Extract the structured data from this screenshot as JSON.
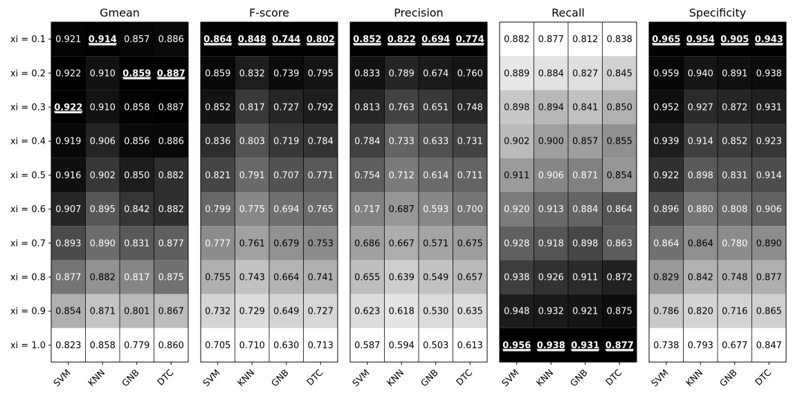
{
  "chart_data": {
    "type": "heatmap",
    "row_labels": [
      "xi = 0.1",
      "xi = 0.2",
      "xi = 0.3",
      "xi = 0.4",
      "xi = 0.5",
      "xi = 0.6",
      "xi = 0.7",
      "xi = 0.8",
      "xi = 0.9",
      "xi = 1.0"
    ],
    "col_labels": [
      "SVM",
      "KNN",
      "GNB",
      "DTC"
    ],
    "colormap": "grayscale",
    "highlight_style": "bold-underline",
    "panels": [
      {
        "title": "Gmean",
        "color_scale": "column-wise; higher value = darker",
        "values": [
          [
            0.921,
            0.914,
            0.857,
            0.886
          ],
          [
            0.922,
            0.91,
            0.859,
            0.887
          ],
          [
            0.922,
            0.91,
            0.858,
            0.887
          ],
          [
            0.919,
            0.906,
            0.856,
            0.886
          ],
          [
            0.916,
            0.902,
            0.85,
            0.882
          ],
          [
            0.907,
            0.895,
            0.842,
            0.882
          ],
          [
            0.893,
            0.89,
            0.831,
            0.877
          ],
          [
            0.877,
            0.882,
            0.817,
            0.875
          ],
          [
            0.854,
            0.871,
            0.801,
            0.867
          ],
          [
            0.823,
            0.858,
            0.779,
            0.86
          ]
        ],
        "highlighted": [
          [
            2,
            0
          ],
          [
            0,
            1
          ],
          [
            1,
            2
          ],
          [
            1,
            3
          ]
        ]
      },
      {
        "title": "F-score",
        "color_scale": "column-wise; higher value = darker",
        "values": [
          [
            0.864,
            0.848,
            0.744,
            0.802
          ],
          [
            0.859,
            0.832,
            0.739,
            0.795
          ],
          [
            0.852,
            0.817,
            0.727,
            0.792
          ],
          [
            0.836,
            0.803,
            0.719,
            0.784
          ],
          [
            0.821,
            0.791,
            0.707,
            0.771
          ],
          [
            0.799,
            0.775,
            0.694,
            0.765
          ],
          [
            0.777,
            0.761,
            0.679,
            0.753
          ],
          [
            0.755,
            0.743,
            0.664,
            0.741
          ],
          [
            0.732,
            0.729,
            0.649,
            0.727
          ],
          [
            0.705,
            0.71,
            0.63,
            0.713
          ]
        ],
        "highlighted": [
          [
            0,
            0
          ],
          [
            0,
            1
          ],
          [
            0,
            2
          ],
          [
            0,
            3
          ]
        ]
      },
      {
        "title": "Precision",
        "color_scale": "column-wise; higher value = darker",
        "values": [
          [
            0.852,
            0.822,
            0.694,
            0.774
          ],
          [
            0.833,
            0.789,
            0.674,
            0.76
          ],
          [
            0.813,
            0.763,
            0.651,
            0.748
          ],
          [
            0.784,
            0.733,
            0.633,
            0.731
          ],
          [
            0.754,
            0.712,
            0.614,
            0.711
          ],
          [
            0.717,
            0.687,
            0.593,
            0.7
          ],
          [
            0.686,
            0.667,
            0.571,
            0.675
          ],
          [
            0.655,
            0.639,
            0.549,
            0.657
          ],
          [
            0.623,
            0.618,
            0.53,
            0.635
          ],
          [
            0.587,
            0.594,
            0.503,
            0.613
          ]
        ],
        "highlighted": [
          [
            0,
            0
          ],
          [
            0,
            1
          ],
          [
            0,
            2
          ],
          [
            0,
            3
          ]
        ]
      },
      {
        "title": "Recall",
        "color_scale": "column-wise; higher value = darker",
        "values": [
          [
            0.882,
            0.877,
            0.812,
            0.838
          ],
          [
            0.889,
            0.884,
            0.827,
            0.845
          ],
          [
            0.898,
            0.894,
            0.841,
            0.85
          ],
          [
            0.902,
            0.9,
            0.857,
            0.855
          ],
          [
            0.911,
            0.906,
            0.871,
            0.854
          ],
          [
            0.92,
            0.913,
            0.884,
            0.864
          ],
          [
            0.928,
            0.918,
            0.898,
            0.863
          ],
          [
            0.938,
            0.926,
            0.911,
            0.872
          ],
          [
            0.948,
            0.932,
            0.921,
            0.875
          ],
          [
            0.956,
            0.938,
            0.931,
            0.877
          ]
        ],
        "highlighted": [
          [
            9,
            0
          ],
          [
            9,
            1
          ],
          [
            9,
            2
          ],
          [
            9,
            3
          ]
        ]
      },
      {
        "title": "Specificity",
        "color_scale": "column-wise; higher value = darker",
        "values": [
          [
            0.965,
            0.954,
            0.905,
            0.943
          ],
          [
            0.959,
            0.94,
            0.891,
            0.938
          ],
          [
            0.952,
            0.927,
            0.872,
            0.931
          ],
          [
            0.939,
            0.914,
            0.852,
            0.923
          ],
          [
            0.922,
            0.898,
            0.831,
            0.914
          ],
          [
            0.896,
            0.88,
            0.808,
            0.906
          ],
          [
            0.864,
            0.864,
            0.78,
            0.89
          ],
          [
            0.829,
            0.842,
            0.748,
            0.877
          ],
          [
            0.786,
            0.82,
            0.716,
            0.865
          ],
          [
            0.738,
            0.793,
            0.677,
            0.847
          ]
        ],
        "highlighted": [
          [
            0,
            0
          ],
          [
            0,
            1
          ],
          [
            0,
            2
          ],
          [
            0,
            3
          ]
        ]
      }
    ]
  }
}
